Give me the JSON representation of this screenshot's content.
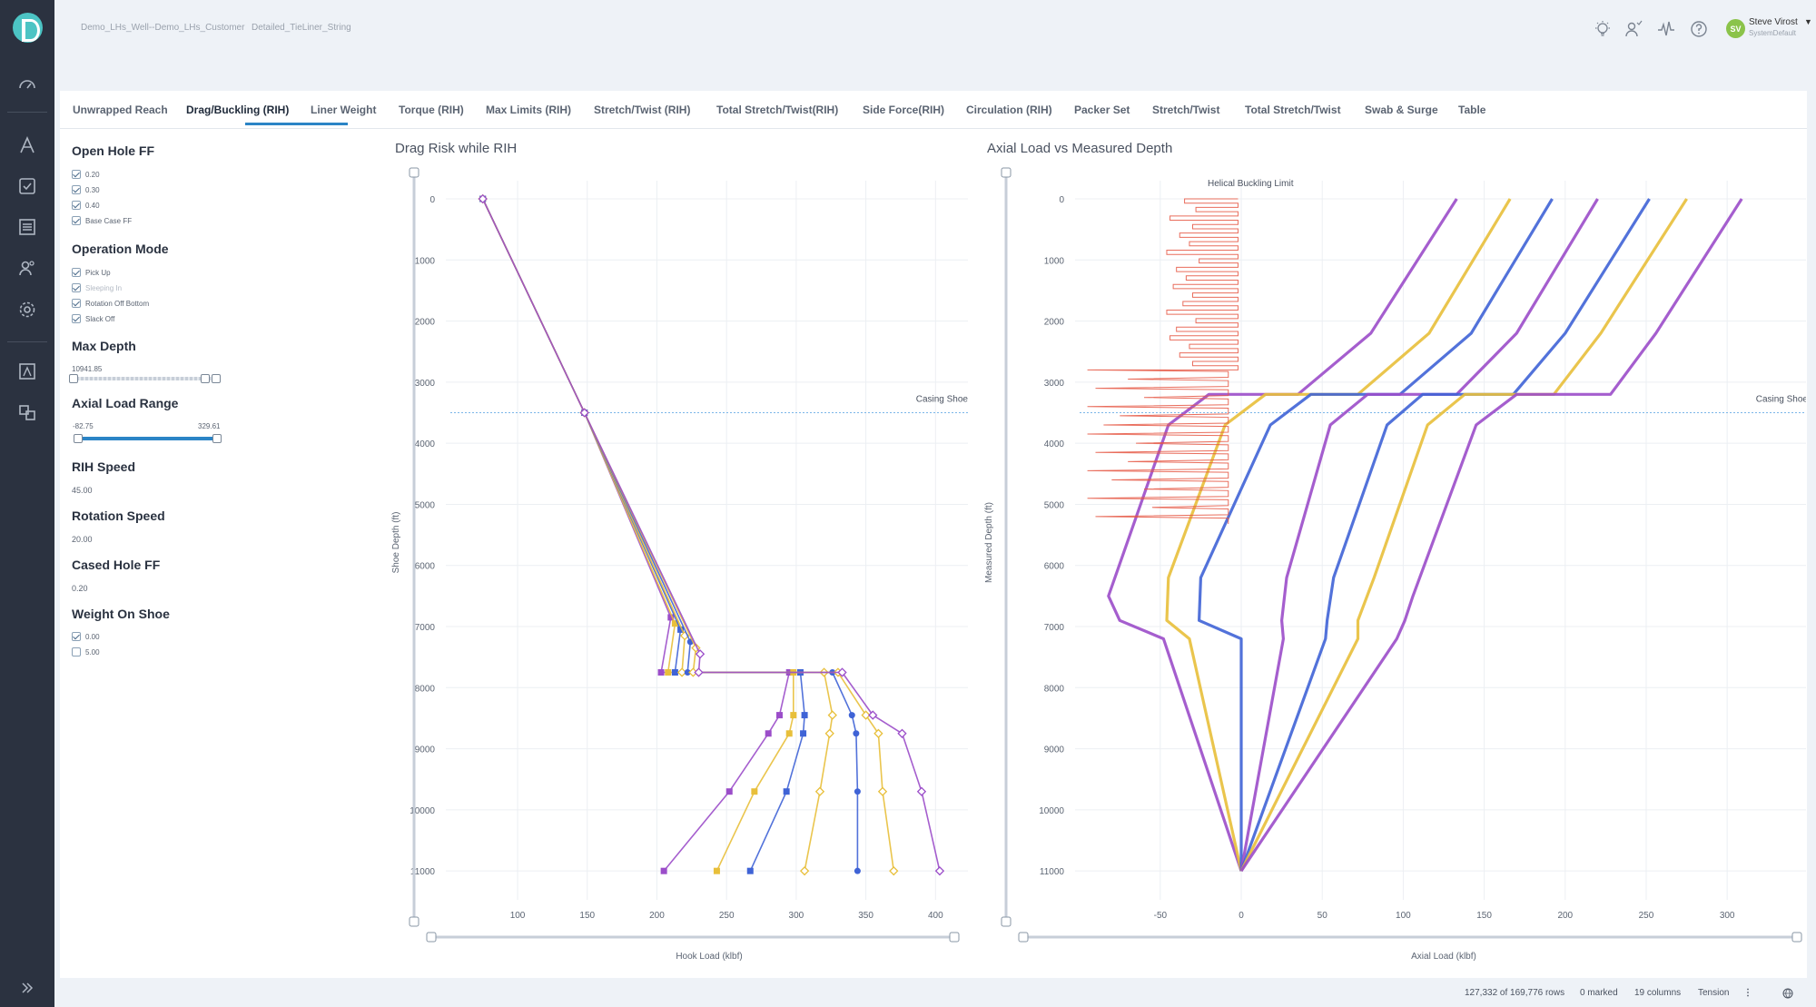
{
  "breadcrumb": {
    "item1": "Demo_LHs_Well--Demo_LHs_Customer",
    "item2": "Detailed_TieLiner_String"
  },
  "user": {
    "initials": "SV",
    "name": "Steve Virost",
    "role": "SystemDefault"
  },
  "tabs": [
    "Unwrapped Reach",
    "Drag/Buckling (RIH)",
    "Liner Weight",
    "Torque (RIH)",
    "Max Limits (RIH)",
    "Stretch/Twist (RIH)",
    "Total Stretch/Twist(RIH)",
    "Side Force(RIH)",
    "Circulation (RIH)",
    "Packer Set",
    "Stretch/Twist",
    "Total Stretch/Twist",
    "Swab & Surge",
    "Table"
  ],
  "active_tab": "Drag/Buckling (RIH)",
  "sidebar": {
    "open_hole_ff": {
      "title": "Open Hole FF",
      "options": [
        "0.20",
        "0.30",
        "0.40",
        "Base Case FF"
      ]
    },
    "operation_mode": {
      "title": "Operation Mode",
      "options": [
        "Pick Up",
        "Sleeping In",
        "Rotation Off Bottom",
        "Slack Off"
      ]
    },
    "max_depth": {
      "title": "Max Depth",
      "value": "10941.85",
      "fraction": 0.92
    },
    "axial_load_range": {
      "title": "Axial Load Range",
      "min": "-82.75",
      "max": "329.61"
    },
    "rih_speed": {
      "title": "RIH Speed",
      "value": "45.00"
    },
    "rotation_speed": {
      "title": "Rotation Speed",
      "value": "20.00"
    },
    "cased_hole_ff": {
      "title": "Cased Hole FF",
      "value": "0.20"
    },
    "weight_on_shoe": {
      "title": "Weight On Shoe",
      "options": [
        "0.00",
        "5.00"
      ],
      "checked": [
        true,
        false
      ]
    }
  },
  "status": {
    "rows": "127,332 of 169,776 rows",
    "marked": "0 marked",
    "columns": "19 columns",
    "mode": "Tension"
  },
  "colors": {
    "purple": "#9b4dc9",
    "gold": "#e8bf3a",
    "blue": "#3f63d6",
    "red": "#e5533f",
    "accent": "#2b84c6",
    "shoe_line": "#7ab6e8"
  },
  "chart_data": [
    {
      "type": "line",
      "title": "Drag Risk while RIH",
      "xlabel": "Hook Load (klbf)",
      "ylabel": "Shoe Depth (ft)",
      "x_ticks": [
        "100",
        "150",
        "200",
        "250",
        "300",
        "350",
        "400"
      ],
      "y_ticks": [
        "0",
        "1000",
        "2000",
        "3000",
        "4000",
        "5000",
        "6000",
        "7000",
        "8000",
        "9000",
        "10000",
        "11000"
      ],
      "xlim": [
        55,
        420
      ],
      "ylim": [
        0,
        11250
      ],
      "annotation": "Casing Shoe",
      "casing_shoe_depth": 3500,
      "series": [
        {
          "color": "purple",
          "marker": "square",
          "points": [
            [
              75,
              0
            ],
            [
              148,
              3500
            ],
            [
              210,
              6850
            ],
            [
              203,
              7750
            ],
            [
              295,
              7750
            ],
            [
              288,
              8450
            ],
            [
              280,
              8750
            ],
            [
              252,
              9700
            ],
            [
              205,
              11000
            ]
          ]
        },
        {
          "color": "gold",
          "marker": "square",
          "points": [
            [
              75,
              0
            ],
            [
              148,
              3500
            ],
            [
              213,
              6950
            ],
            [
              208,
              7750
            ],
            [
              298,
              7750
            ],
            [
              298,
              8450
            ],
            [
              295,
              8750
            ],
            [
              270,
              9700
            ],
            [
              243,
              11000
            ]
          ]
        },
        {
          "color": "blue",
          "marker": "square",
          "points": [
            [
              75,
              0
            ],
            [
              148,
              3500
            ],
            [
              217,
              7050
            ],
            [
              213,
              7750
            ],
            [
              303,
              7750
            ],
            [
              306,
              8450
            ],
            [
              305,
              8750
            ],
            [
              293,
              9700
            ],
            [
              267,
              11000
            ]
          ]
        },
        {
          "color": "gold",
          "marker": "diamond",
          "points": [
            [
              75,
              0
            ],
            [
              148,
              3500
            ],
            [
              220,
              7150
            ],
            [
              218,
              7750
            ],
            [
              320,
              7750
            ],
            [
              326,
              8450
            ],
            [
              324,
              8750
            ],
            [
              317,
              9700
            ],
            [
              306,
              11000
            ]
          ]
        },
        {
          "color": "blue",
          "marker": "circle",
          "points": [
            [
              75,
              0
            ],
            [
              148,
              3500
            ],
            [
              224,
              7250
            ],
            [
              222,
              7750
            ],
            [
              326,
              7750
            ],
            [
              340,
              8450
            ],
            [
              343,
              8750
            ],
            [
              344,
              9700
            ],
            [
              344,
              11000
            ]
          ]
        },
        {
          "color": "gold",
          "marker": "diamond",
          "points": [
            [
              75,
              0
            ],
            [
              148,
              3500
            ],
            [
              228,
              7350
            ],
            [
              226,
              7750
            ],
            [
              330,
              7750
            ],
            [
              350,
              8450
            ],
            [
              359,
              8750
            ],
            [
              362,
              9700
            ],
            [
              370,
              11000
            ]
          ]
        },
        {
          "color": "purple",
          "marker": "diamond",
          "points": [
            [
              75,
              0
            ],
            [
              148,
              3500
            ],
            [
              231,
              7450
            ],
            [
              230,
              7750
            ],
            [
              333,
              7750
            ],
            [
              355,
              8450
            ],
            [
              376,
              8750
            ],
            [
              390,
              9700
            ],
            [
              403,
              11000
            ]
          ]
        }
      ]
    },
    {
      "type": "line",
      "title": "Axial Load vs Measured Depth",
      "xlabel": "Axial Load (klbf)",
      "ylabel": "Measured Depth (ft)",
      "x_ticks": [
        "-50",
        "0",
        "50",
        "100",
        "150",
        "200",
        "250",
        "300"
      ],
      "y_ticks": [
        "0",
        "1000",
        "2000",
        "3000",
        "4000",
        "5000",
        "6000",
        "7000",
        "8000",
        "9000",
        "10000",
        "11000"
      ],
      "xlim": [
        -97,
        347
      ],
      "ylim": [
        0,
        11250
      ],
      "annotation": "Casing Shoe",
      "helical_label": "Helical Buckling Limit",
      "casing_shoe_depth": 3500,
      "series": [
        {
          "color": "purple",
          "points": [
            [
              133,
              0
            ],
            [
              80,
              2200
            ],
            [
              35,
              3200
            ],
            [
              -20,
              3200
            ],
            [
              -45,
              3700
            ],
            [
              -82,
              6500
            ],
            [
              -75,
              6900
            ],
            [
              -48,
              7200
            ],
            [
              0,
              11000
            ]
          ]
        },
        {
          "color": "gold",
          "points": [
            [
              166,
              0
            ],
            [
              116,
              2200
            ],
            [
              72,
              3200
            ],
            [
              15,
              3200
            ],
            [
              -10,
              3700
            ],
            [
              -45,
              6200
            ],
            [
              -46,
              6900
            ],
            [
              -32,
              7200
            ],
            [
              0,
              11000
            ]
          ]
        },
        {
          "color": "blue",
          "points": [
            [
              192,
              0
            ],
            [
              142,
              2200
            ],
            [
              98,
              3200
            ],
            [
              43,
              3200
            ],
            [
              18,
              3700
            ],
            [
              -25,
              6200
            ],
            [
              -26,
              6900
            ],
            [
              0,
              7200
            ],
            [
              0,
              11000
            ]
          ]
        },
        {
          "color": "purple",
          "points": [
            [
              220,
              0
            ],
            [
              170,
              2200
            ],
            [
              133,
              3200
            ],
            [
              78,
              3200
            ],
            [
              55,
              3700
            ],
            [
              28,
              6200
            ],
            [
              25,
              6900
            ],
            [
              26,
              7200
            ],
            [
              0,
              11000
            ]
          ]
        },
        {
          "color": "blue",
          "points": [
            [
              252,
              0
            ],
            [
              200,
              2200
            ],
            [
              168,
              3200
            ],
            [
              112,
              3200
            ],
            [
              90,
              3700
            ],
            [
              57,
              6200
            ],
            [
              53,
              6900
            ],
            [
              52,
              7200
            ],
            [
              0,
              11000
            ]
          ]
        },
        {
          "color": "gold",
          "points": [
            [
              275,
              0
            ],
            [
              222,
              2200
            ],
            [
              193,
              3200
            ],
            [
              138,
              3200
            ],
            [
              115,
              3700
            ],
            [
              82,
              6200
            ],
            [
              72,
              6900
            ],
            [
              72,
              7200
            ],
            [
              0,
              11000
            ]
          ]
        },
        {
          "color": "purple",
          "points": [
            [
              309,
              0
            ],
            [
              256,
              2200
            ],
            [
              228,
              3200
            ],
            [
              170,
              3200
            ],
            [
              145,
              3700
            ],
            [
              106,
              6500
            ],
            [
              101,
              6900
            ],
            [
              96,
              7200
            ],
            [
              0,
              11000
            ]
          ]
        }
      ]
    }
  ]
}
